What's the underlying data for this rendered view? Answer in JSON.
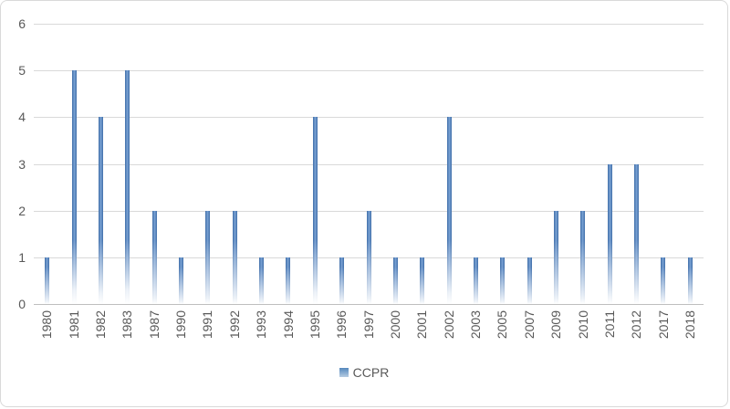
{
  "chart_data": {
    "type": "bar",
    "title": "",
    "categories": [
      "1980",
      "1981",
      "1982",
      "1983",
      "1987",
      "1990",
      "1991",
      "1992",
      "1993",
      "1994",
      "1995",
      "1996",
      "1997",
      "2000",
      "2001",
      "2002",
      "2003",
      "2005",
      "2007",
      "2009",
      "2010",
      "2011",
      "2012",
      "2017",
      "2018"
    ],
    "series": [
      {
        "name": "CCPR",
        "values": [
          1,
          5,
          4,
          5,
          2,
          1,
          2,
          2,
          1,
          1,
          4,
          1,
          2,
          1,
          1,
          4,
          1,
          1,
          1,
          2,
          2,
          3,
          3,
          1,
          1
        ]
      }
    ],
    "xlabel": "",
    "ylabel": "",
    "ylim": [
      0,
      6
    ],
    "yticks": [
      0,
      1,
      2,
      3,
      4,
      5,
      6
    ],
    "grid": "horizontal",
    "x_tick_rotation": 90,
    "legend_position": "bottom-center",
    "colors": {
      "bar_edge": "#3f6da8",
      "bar_center": "#7aa2d4",
      "bar_base": "#4f81bd",
      "gridline": "#d9d9d9",
      "axis_line": "#bfbfbf",
      "tick_label": "#595959",
      "legend_swatch_top": "#5588bd",
      "legend_swatch_bottom": "#b6cce2",
      "chart_border": "#d9d9d9",
      "background": "#ffffff"
    }
  }
}
